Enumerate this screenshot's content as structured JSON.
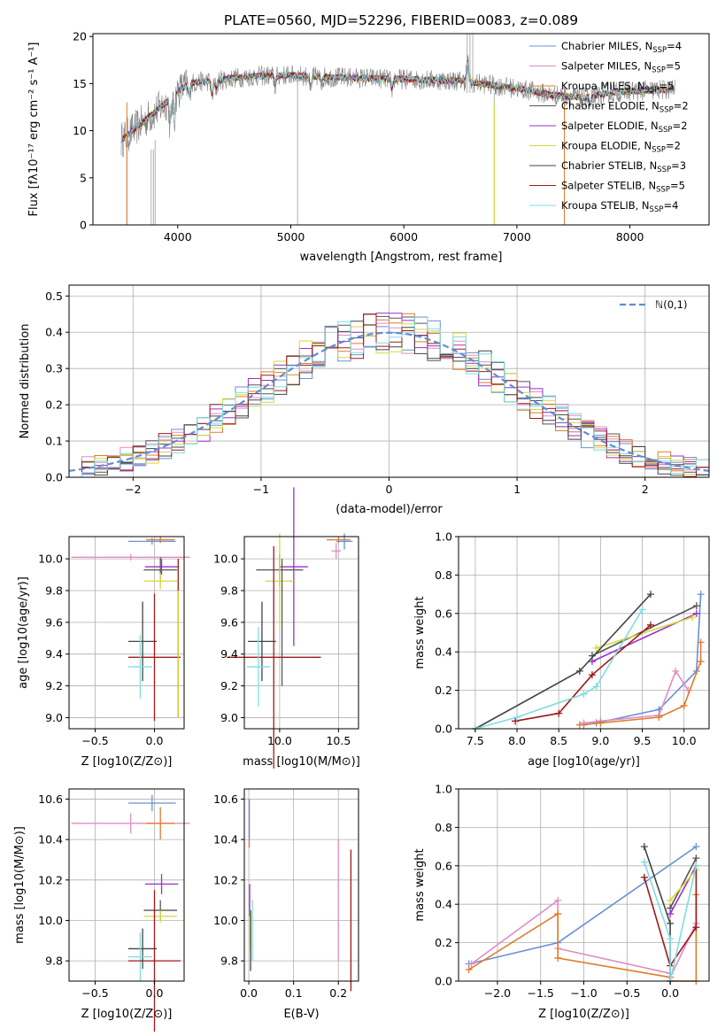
{
  "palette": {
    "Chabrier MILES": "#6a8fd8",
    "Salpeter MILES": "#e08dc3",
    "Kroupa MILES": "#e07b2a",
    "Chabrier ELODIE": "#555555",
    "Salpeter ELODIE": "#9b30c8",
    "Kroupa ELODIE": "#d6d640",
    "Chabrier STELIB": "#444444",
    "Salpeter STELIB": "#a01818",
    "Kroupa STELIB": "#7fdde0"
  },
  "chart_data": [
    {
      "id": "spectrum",
      "type": "line",
      "title": "PLATE=0560, MJD=52296, FIBERID=0083, z=0.089",
      "xlabel": "wavelength [Angstrom, rest frame]",
      "ylabel": "Flux [fλ10⁻¹⁷ erg cm⁻² s⁻¹ A⁻¹]",
      "xlim": [
        3250,
        8700
      ],
      "ylim": [
        0,
        20.3
      ],
      "xticks": [
        "4000",
        "5000",
        "6000",
        "7000",
        "8000"
      ],
      "yticks": [
        "0",
        "5",
        "10",
        "15",
        "20"
      ],
      "grid": false,
      "legend_position": "top-right",
      "legend": [
        "Chabrier MILES, N_SSP=4",
        "Salpeter MILES, N_SSP=5",
        "Kroupa MILES, N_SSP=5",
        "Chabrier ELODIE, N_SSP=2",
        "Salpeter ELODIE, N_SSP=2",
        "Kroupa ELODIE, N_SSP=2",
        "Chabrier STELIB, N_SSP=3",
        "Salpeter STELIB, N_SSP=5",
        "Kroupa STELIB, N_SSP=4"
      ],
      "continuum": {
        "x": [
          3500,
          3600,
          3700,
          3800,
          3900,
          4000,
          4100,
          4200,
          4300,
          4400,
          4500,
          4700,
          5000,
          5300,
          5600,
          5900,
          6200,
          6500,
          6800,
          7100,
          7300,
          7500,
          7600,
          7800,
          8000,
          8200,
          8400
        ],
        "y": [
          9.0,
          10.0,
          11.0,
          12.0,
          13.0,
          14.2,
          15.0,
          15.2,
          15.3,
          15.4,
          15.6,
          15.8,
          15.9,
          15.7,
          15.6,
          15.5,
          15.4,
          15.3,
          14.8,
          14.3,
          13.8,
          13.6,
          13.5,
          14.0,
          14.2,
          14.3,
          14.4
        ]
      },
      "features": [
        {
          "x": 3934,
          "depth": 3.0
        },
        {
          "x": 3969,
          "depth": 2.5
        },
        {
          "x": 4102,
          "depth": 1.5
        },
        {
          "x": 4304,
          "depth": 1.8
        },
        {
          "x": 4341,
          "depth": 1.0
        },
        {
          "x": 4861,
          "depth": 1.2
        },
        {
          "x": 5175,
          "depth": 1.6
        },
        {
          "x": 5270,
          "depth": 0.8
        },
        {
          "x": 5893,
          "depth": 1.2
        },
        {
          "x": 6563,
          "depth": -2.5
        },
        {
          "x": 7650,
          "depth": 1.0
        },
        {
          "x": 8498,
          "depth": 1.0
        },
        {
          "x": 8542,
          "depth": 1.2
        },
        {
          "x": 8662,
          "depth": 1.0
        }
      ],
      "data_spikes": [
        {
          "x": 3550,
          "ymin": 0,
          "ymax": 9
        },
        {
          "x": 3765,
          "ymin": 0,
          "ymax": 8
        },
        {
          "x": 3785,
          "ymin": 0,
          "ymax": 8
        },
        {
          "x": 3800,
          "ymin": 0,
          "ymax": 9
        },
        {
          "x": 5060,
          "ymin": 0,
          "ymax": 16
        },
        {
          "x": 6560,
          "ymin": 14,
          "ymax": 20.3
        },
        {
          "x": 6585,
          "ymin": 14,
          "ymax": 20.3
        },
        {
          "x": 6610,
          "ymin": 14,
          "ymax": 20.3
        },
        {
          "x": 6800,
          "ymin": 0,
          "ymax": 14
        },
        {
          "x": 7420,
          "ymin": 0,
          "ymax": 14
        }
      ]
    },
    {
      "id": "residuals",
      "type": "line",
      "xlabel": "(data-model)/error",
      "ylabel": "Normed distribution",
      "xlim": [
        -2.5,
        2.5
      ],
      "ylim": [
        0,
        0.53
      ],
      "xticks": [
        "−2",
        "−1",
        "0",
        "1",
        "2"
      ],
      "yticks": [
        "0.0",
        "0.1",
        "0.2",
        "0.3",
        "0.4",
        "0.5"
      ],
      "grid": true,
      "legend_position": "top-right",
      "legend": [
        "ℕ(0,1)"
      ],
      "series": [
        {
          "name": "ℕ(0,1)",
          "function": "normal",
          "mean": 0,
          "sigma": 1
        }
      ],
      "histograms": {
        "bin_width": 0.1,
        "x_start": -2.5,
        "count": 9,
        "amplitude_noise": 0.05
      }
    },
    {
      "id": "age_vs_Z",
      "type": "scatter",
      "xlabel": "Z [log10(Z/Z⊙)]",
      "ylabel": "age [log10(age/yr)]",
      "xlim": [
        -0.72,
        0.25
      ],
      "ylim": [
        8.93,
        10.14
      ],
      "xticks": [
        "−0.5",
        "0.0"
      ],
      "yticks": [
        "9.0",
        "9.2",
        "9.4",
        "9.6",
        "9.8",
        "10.0"
      ],
      "grid": true,
      "points": [
        {
          "model": "Kroupa MILES",
          "x": 0.05,
          "y": 10.12,
          "xerr": 0.12,
          "yerr": 0.02
        },
        {
          "model": "Chabrier MILES",
          "x": -0.02,
          "y": 10.11,
          "xerr": 0.2,
          "yerr": 0.02
        },
        {
          "model": "Salpeter MILES",
          "x": -0.2,
          "y": 10.01,
          "xerr": 0.5,
          "yerr": 0.02
        },
        {
          "model": "Chabrier ELODIE",
          "x": 0.05,
          "y": 9.93,
          "xerr": 0.14,
          "yerr": 0.08
        },
        {
          "model": "Salpeter ELODIE",
          "x": 0.06,
          "y": 9.95,
          "xerr": 0.14,
          "yerr": 0.05
        },
        {
          "model": "Kroupa ELODIE",
          "x": 0.05,
          "y": 9.86,
          "xerr": 0.14,
          "yerr": 0.05
        },
        {
          "model": "Chabrier STELIB",
          "x": -0.1,
          "y": 9.48,
          "xerr": 0.12,
          "yerr": 0.25
        },
        {
          "model": "Salpeter STELIB",
          "x": 0.0,
          "y": 9.38,
          "xerr": 0.22,
          "yerr": 0.4
        },
        {
          "model": "Kroupa STELIB",
          "x": -0.12,
          "y": 9.32,
          "xerr": 0.1,
          "yerr": 0.2
        },
        {
          "model": "Salpeter STELIB",
          "x": 0.2,
          "y": 9.5,
          "xerr": 0.0,
          "yerr": 0.5
        },
        {
          "model": "Kroupa ELODIE",
          "x": 0.2,
          "y": 9.4,
          "xerr": 0.0,
          "yerr": 0.4
        }
      ]
    },
    {
      "id": "age_vs_mass",
      "type": "scatter",
      "xlabel": "mass [log10(M/M⊙)]",
      "ylabel": "",
      "xlim": [
        9.7,
        10.67
      ],
      "ylim": [
        8.93,
        10.14
      ],
      "xticks": [
        "10.0",
        "10.5"
      ],
      "yticks": [
        "9.0",
        "9.2",
        "9.4",
        "9.6",
        "9.8",
        "10.0"
      ],
      "grid": true,
      "points": [
        {
          "model": "Kroupa MILES",
          "x": 10.5,
          "y": 10.12,
          "xerr": 0.1,
          "yerr": 0.02
        },
        {
          "model": "Chabrier MILES",
          "x": 10.55,
          "y": 10.11,
          "xerr": 0.07,
          "yerr": 0.05
        },
        {
          "model": "Salpeter MILES",
          "x": 10.48,
          "y": 10.05,
          "xerr": 0.04,
          "yerr": 0.05
        },
        {
          "model": "Chabrier ELODIE",
          "x": 10.0,
          "y": 9.93,
          "xerr": 0.2,
          "yerr": 0.1
        },
        {
          "model": "Salpeter ELODIE",
          "x": 10.12,
          "y": 9.95,
          "xerr": 0.12,
          "yerr": 0.5
        },
        {
          "model": "Kroupa ELODIE",
          "x": 10.0,
          "y": 9.86,
          "xerr": 0.12,
          "yerr": 0.3
        },
        {
          "model": "Chabrier STELIB",
          "x": 9.85,
          "y": 9.48,
          "xerr": 0.12,
          "yerr": 0.25
        },
        {
          "model": "Salpeter STELIB",
          "x": 9.95,
          "y": 9.38,
          "xerr": 0.4,
          "yerr": 0.7
        },
        {
          "model": "Kroupa STELIB",
          "x": 9.82,
          "y": 9.32,
          "xerr": 0.1,
          "yerr": 0.25
        },
        {
          "model": "Chabrier ELODIE",
          "x": 10.02,
          "y": 9.6,
          "xerr": 0.0,
          "yerr": 0.4
        }
      ]
    },
    {
      "id": "mw_vs_age",
      "type": "line",
      "xlabel": "age [log10(age/yr)]",
      "ylabel": "mass weight",
      "xlim": [
        7.3,
        10.3
      ],
      "ylim": [
        0,
        1
      ],
      "xticks": [
        "7.5",
        "8.0",
        "8.5",
        "9.0",
        "9.5",
        "10.0"
      ],
      "yticks": [
        "0.0",
        "0.2",
        "0.4",
        "0.6",
        "0.8",
        "1.0"
      ],
      "grid": true,
      "series": [
        {
          "name": "Chabrier MILES",
          "x": [
            8.8,
            8.95,
            9.7,
            10.15,
            10.2
          ],
          "y": [
            0.02,
            0.03,
            0.1,
            0.3,
            0.7
          ]
        },
        {
          "name": "Salpeter MILES",
          "x": [
            8.8,
            9.0,
            9.7,
            9.9,
            10.05
          ],
          "y": [
            0.03,
            0.04,
            0.07,
            0.3,
            0.2
          ]
        },
        {
          "name": "Kroupa MILES",
          "x": [
            8.75,
            9.0,
            9.7,
            10.0,
            10.2,
            10.2
          ],
          "y": [
            0.02,
            0.03,
            0.06,
            0.12,
            0.35,
            0.45
          ]
        },
        {
          "name": "Chabrier ELODIE",
          "x": [
            8.9,
            10.15
          ],
          "y": [
            0.38,
            0.64
          ]
        },
        {
          "name": "Salpeter ELODIE",
          "x": [
            8.9,
            10.15
          ],
          "y": [
            0.35,
            0.6
          ]
        },
        {
          "name": "Kroupa ELODIE",
          "x": [
            8.95,
            10.1
          ],
          "y": [
            0.42,
            0.58
          ]
        },
        {
          "name": "Chabrier STELIB",
          "x": [
            7.5,
            8.75,
            9.6
          ],
          "y": [
            0.0,
            0.3,
            0.7
          ]
        },
        {
          "name": "Salpeter STELIB",
          "x": [
            7.98,
            8.5,
            8.9,
            9.6
          ],
          "y": [
            0.04,
            0.08,
            0.28,
            0.54
          ]
        },
        {
          "name": "Kroupa STELIB",
          "x": [
            7.5,
            8.0,
            8.8,
            8.95,
            9.5
          ],
          "y": [
            0.0,
            0.06,
            0.18,
            0.22,
            0.62
          ]
        }
      ]
    },
    {
      "id": "mass_vs_Z",
      "type": "scatter",
      "xlabel": "Z [log10(Z/Z⊙)]",
      "ylabel": "mass [log10(M/M⊙)]",
      "xlim": [
        -0.72,
        0.25
      ],
      "ylim": [
        9.7,
        10.65
      ],
      "xticks": [
        "−0.5",
        "0.0"
      ],
      "yticks": [
        "9.8",
        "10.0",
        "10.2",
        "10.4",
        "10.6"
      ],
      "grid": true,
      "points": [
        {
          "model": "Chabrier MILES",
          "x": -0.02,
          "y": 10.58,
          "xerr": 0.2,
          "yerr": 0.04
        },
        {
          "model": "Salpeter MILES",
          "x": -0.2,
          "y": 10.48,
          "xerr": 0.5,
          "yerr": 0.05
        },
        {
          "model": "Kroupa MILES",
          "x": 0.05,
          "y": 10.48,
          "xerr": 0.12,
          "yerr": 0.08
        },
        {
          "model": "Salpeter ELODIE",
          "x": 0.06,
          "y": 10.18,
          "xerr": 0.14,
          "yerr": 0.05
        },
        {
          "model": "Chabrier ELODIE",
          "x": 0.05,
          "y": 10.05,
          "xerr": 0.14,
          "yerr": 0.05
        },
        {
          "model": "Kroupa ELODIE",
          "x": 0.05,
          "y": 10.02,
          "xerr": 0.14,
          "yerr": 0.03
        },
        {
          "model": "Chabrier STELIB",
          "x": -0.1,
          "y": 9.86,
          "xerr": 0.12,
          "yerr": 0.1
        },
        {
          "model": "Kroupa STELIB",
          "x": -0.12,
          "y": 9.82,
          "xerr": 0.1,
          "yerr": 0.12
        },
        {
          "model": "Salpeter STELIB",
          "x": 0.0,
          "y": 9.8,
          "xerr": 0.22,
          "yerr": 0.35
        }
      ]
    },
    {
      "id": "mass_vs_EBV",
      "type": "scatter",
      "xlabel": "E(B-V)",
      "ylabel": "",
      "xlim": [
        -0.01,
        0.245
      ],
      "ylim": [
        9.7,
        10.65
      ],
      "xticks": [
        "0.0",
        "0.1",
        "0.2"
      ],
      "yticks": [
        "9.8",
        "10.0",
        "10.2",
        "10.4",
        "10.6"
      ],
      "grid": true,
      "points": [
        {
          "model": "Kroupa MILES",
          "x": 0.001,
          "y": 10.48,
          "xerr": 0,
          "yerr": 0.12
        },
        {
          "model": "Chabrier MILES",
          "x": 0.001,
          "y": 10.5,
          "xerr": 0,
          "yerr": 0.1
        },
        {
          "model": "Salpeter ELODIE",
          "x": 0.002,
          "y": 10.1,
          "xerr": 0,
          "yerr": 0.08
        },
        {
          "model": "Kroupa ELODIE",
          "x": 0.003,
          "y": 9.95,
          "xerr": 0,
          "yerr": 0.1
        },
        {
          "model": "Kroupa STELIB",
          "x": 0.008,
          "y": 9.95,
          "xerr": 0,
          "yerr": 0.15
        },
        {
          "model": "Chabrier STELIB",
          "x": 0.004,
          "y": 9.9,
          "xerr": 0,
          "yerr": 0.15
        },
        {
          "model": "Salpeter MILES",
          "x": 0.2,
          "y": 10.1,
          "xerr": 0,
          "yerr": 0.3
        },
        {
          "model": "Salpeter STELIB",
          "x": 0.228,
          "y": 10.0,
          "xerr": 0,
          "yerr": 0.35
        }
      ]
    },
    {
      "id": "mw_vs_Z",
      "type": "line",
      "xlabel": "Z [log10(Z/Z⊙)]",
      "ylabel": "mass weight",
      "xlim": [
        -2.45,
        0.45
      ],
      "ylim": [
        0,
        1
      ],
      "xticks": [
        "−2.0",
        "−1.5",
        "−1.0",
        "−0.5",
        "0.0"
      ],
      "yticks": [
        "0.0",
        "0.2",
        "0.4",
        "0.6",
        "0.8",
        "1.0"
      ],
      "grid": true,
      "series": [
        {
          "name": "Chabrier MILES",
          "x": [
            -2.33,
            -1.3,
            0.3
          ],
          "y": [
            0.09,
            0.2,
            0.7
          ]
        },
        {
          "name": "Salpeter MILES",
          "x": [
            -2.3,
            -1.3,
            -1.3,
            0.0,
            0.0,
            0.3
          ],
          "y": [
            0.09,
            0.42,
            0.17,
            0.04,
            0.02,
            0.3
          ]
        },
        {
          "name": "Kroupa MILES",
          "x": [
            -2.33,
            -1.3,
            -1.3,
            0.0,
            0.0,
            0.3,
            0.3
          ],
          "y": [
            0.06,
            0.35,
            0.12,
            0.02,
            0.0,
            0.0,
            0.45
          ]
        },
        {
          "name": "Chabrier ELODIE",
          "x": [
            0.0,
            0.3
          ],
          "y": [
            0.38,
            0.64
          ]
        },
        {
          "name": "Salpeter ELODIE",
          "x": [
            0.0,
            0.3
          ],
          "y": [
            0.35,
            0.6
          ]
        },
        {
          "name": "Kroupa ELODIE",
          "x": [
            0.0,
            0.3
          ],
          "y": [
            0.42,
            0.58
          ]
        },
        {
          "name": "Chabrier STELIB",
          "x": [
            -0.3,
            0.0,
            0.0
          ],
          "y": [
            0.7,
            0.3,
            0.0
          ]
        },
        {
          "name": "Salpeter STELIB",
          "x": [
            -0.3,
            0.0,
            0.3,
            0.3
          ],
          "y": [
            0.54,
            0.08,
            0.28,
            0.6
          ]
        },
        {
          "name": "Kroupa STELIB",
          "x": [
            -0.3,
            0.0,
            0.0,
            0.3
          ],
          "y": [
            0.62,
            0.22,
            0.0,
            0.6
          ]
        }
      ]
    }
  ]
}
